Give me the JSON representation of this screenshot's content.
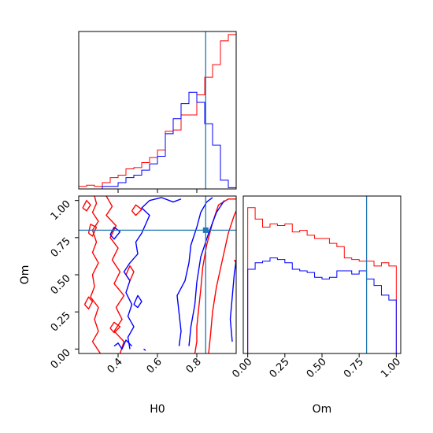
{
  "colors": {
    "red": "#ff0000",
    "blue": "#0000ff",
    "truth": "#1f77b4",
    "frame": "#000000"
  },
  "chart_data": {
    "type": "corner",
    "truth": {
      "H0": 0.845,
      "Om": 0.8
    },
    "panels": {
      "h0_hist": {
        "type": "histogram",
        "xlim": [
          0.2,
          1.0
        ],
        "bin_edges": [
          0.2,
          0.24,
          0.28,
          0.32,
          0.36,
          0.4,
          0.44,
          0.48,
          0.52,
          0.56,
          0.6,
          0.64,
          0.68,
          0.72,
          0.76,
          0.8,
          0.84,
          0.88,
          0.92,
          0.96,
          1.0
        ],
        "series": [
          {
            "color": "red",
            "counts": [
              2,
              3,
              2,
              5,
              9,
              11,
              16,
              17,
              21,
              25,
              31,
              46,
              47,
              59,
              59,
              75,
              89,
              99,
              118,
              123
            ]
          },
          {
            "color": "blue",
            "counts": [
              0,
              0,
              0,
              2,
              2,
              5,
              9,
              11,
              15,
              20,
              26,
              44,
              56,
              68,
              77,
              69,
              52,
              35,
              7,
              1
            ]
          }
        ]
      },
      "om_hist": {
        "type": "histogram",
        "xlim": [
          -0.03,
          1.03
        ],
        "xticks": [
          "0.00",
          "0.25",
          "0.50",
          "0.75",
          "1.00"
        ],
        "xlabel": "Om",
        "bin_edges": [
          0.0,
          0.05,
          0.1,
          0.15,
          0.2,
          0.25,
          0.3,
          0.35,
          0.4,
          0.45,
          0.5,
          0.55,
          0.6,
          0.65,
          0.7,
          0.75,
          0.8,
          0.85,
          0.9,
          0.95,
          1.0
        ],
        "series": [
          {
            "color": "red",
            "counts": [
              90,
              83,
              78,
              80,
              79,
              80,
              75,
              76,
              73,
              71,
              71,
              68,
              66,
              59,
              58,
              57,
              57,
              54,
              56,
              54
            ]
          },
          {
            "color": "blue",
            "counts": [
              52,
              56,
              57,
              59,
              58,
              56,
              52,
              51,
              50,
              47,
              46,
              47,
              51,
              51,
              49,
              51,
              46,
              42,
              36,
              33
            ]
          }
        ]
      },
      "joint": {
        "type": "contour",
        "xlim": [
          0.2,
          1.0
        ],
        "ylim": [
          -0.03,
          1.03
        ],
        "xticks": [
          "0.4",
          "0.6",
          "0.8"
        ],
        "yticks": [
          "0.00",
          "0.25",
          "0.50",
          "0.75",
          "1.00"
        ],
        "xlabel": "H0",
        "ylabel": "Om",
        "red_contours": [
          [
            [
              0.28,
              1.03
            ],
            [
              0.29,
              0.98
            ],
            [
              0.27,
              0.92
            ],
            [
              0.3,
              0.86
            ],
            [
              0.27,
              0.8
            ],
            [
              0.29,
              0.72
            ],
            [
              0.27,
              0.65
            ],
            [
              0.3,
              0.58
            ],
            [
              0.27,
              0.5
            ],
            [
              0.28,
              0.42
            ],
            [
              0.26,
              0.35
            ],
            [
              0.3,
              0.28
            ],
            [
              0.28,
              0.2
            ],
            [
              0.3,
              0.12
            ],
            [
              0.27,
              0.05
            ],
            [
              0.31,
              -0.03
            ]
          ],
          [
            [
              0.34,
              1.03
            ],
            [
              0.37,
              0.96
            ],
            [
              0.34,
              0.9
            ],
            [
              0.39,
              0.83
            ],
            [
              0.36,
              0.75
            ],
            [
              0.4,
              0.68
            ],
            [
              0.37,
              0.6
            ],
            [
              0.41,
              0.52
            ],
            [
              0.38,
              0.44
            ],
            [
              0.43,
              0.36
            ],
            [
              0.39,
              0.28
            ],
            [
              0.42,
              0.2
            ],
            [
              0.38,
              0.12
            ],
            [
              0.43,
              0.05
            ],
            [
              0.41,
              -0.03
            ]
          ],
          [
            [
              0.79,
              -0.03
            ],
            [
              0.8,
              0.05
            ],
            [
              0.8,
              0.15
            ],
            [
              0.81,
              0.28
            ],
            [
              0.82,
              0.4
            ],
            [
              0.83,
              0.55
            ],
            [
              0.85,
              0.7
            ],
            [
              0.88,
              0.85
            ],
            [
              0.91,
              0.97
            ],
            [
              0.96,
              1.01
            ],
            [
              1.0,
              1.01
            ]
          ],
          [
            [
              0.86,
              -0.03
            ],
            [
              0.87,
              0.1
            ],
            [
              0.88,
              0.25
            ],
            [
              0.9,
              0.42
            ],
            [
              0.93,
              0.6
            ],
            [
              0.96,
              0.78
            ],
            [
              0.99,
              0.9
            ],
            [
              1.0,
              0.93
            ]
          ],
          [
            [
              0.22,
              0.95
            ],
            [
              0.24,
              0.93
            ],
            [
              0.26,
              0.97
            ],
            [
              0.24,
              1.0
            ],
            [
              0.22,
              0.95
            ]
          ],
          [
            [
              0.23,
              0.3
            ],
            [
              0.25,
              0.27
            ],
            [
              0.27,
              0.32
            ],
            [
              0.25,
              0.35
            ],
            [
              0.23,
              0.3
            ]
          ],
          [
            [
              0.44,
              0.5
            ],
            [
              0.46,
              0.46
            ],
            [
              0.48,
              0.52
            ],
            [
              0.46,
              0.56
            ],
            [
              0.44,
              0.5
            ]
          ],
          [
            [
              0.25,
              0.78
            ],
            [
              0.27,
              0.76
            ],
            [
              0.29,
              0.82
            ],
            [
              0.26,
              0.84
            ],
            [
              0.25,
              0.78
            ]
          ],
          [
            [
              0.47,
              0.93
            ],
            [
              0.49,
              0.9
            ],
            [
              0.52,
              0.94
            ],
            [
              0.49,
              0.97
            ],
            [
              0.47,
              0.93
            ]
          ],
          [
            [
              0.36,
              0.14
            ],
            [
              0.38,
              0.11
            ],
            [
              0.41,
              0.15
            ],
            [
              0.38,
              0.18
            ],
            [
              0.36,
              0.14
            ]
          ],
          [
            [
              0.99,
              0.6
            ],
            [
              1.0,
              0.58
            ]
          ]
        ],
        "blue_contours": [
          [
            [
              0.46,
              0.0
            ],
            [
              0.45,
              0.08
            ],
            [
              0.48,
              0.15
            ],
            [
              0.45,
              0.22
            ],
            [
              0.47,
              0.3
            ],
            [
              0.44,
              0.38
            ],
            [
              0.46,
              0.46
            ],
            [
              0.43,
              0.52
            ],
            [
              0.46,
              0.58
            ],
            [
              0.5,
              0.64
            ],
            [
              0.49,
              0.72
            ],
            [
              0.52,
              0.78
            ],
            [
              0.54,
              0.84
            ],
            [
              0.56,
              0.9
            ],
            [
              0.52,
              0.95
            ],
            [
              0.56,
              1.0
            ],
            [
              0.62,
              1.02
            ],
            [
              0.68,
              0.99
            ],
            [
              0.72,
              1.01
            ]
          ],
          [
            [
              0.71,
              0.02
            ],
            [
              0.72,
              0.12
            ],
            [
              0.71,
              0.24
            ],
            [
              0.7,
              0.36
            ],
            [
              0.74,
              0.46
            ],
            [
              0.76,
              0.58
            ],
            [
              0.77,
              0.7
            ],
            [
              0.8,
              0.82
            ],
            [
              0.82,
              0.92
            ],
            [
              0.85,
              0.99
            ],
            [
              0.88,
              1.02
            ]
          ],
          [
            [
              0.76,
              0.02
            ],
            [
              0.77,
              0.15
            ],
            [
              0.79,
              0.3
            ],
            [
              0.8,
              0.45
            ],
            [
              0.82,
              0.62
            ],
            [
              0.86,
              0.78
            ],
            [
              0.9,
              0.92
            ],
            [
              0.94,
              1.0
            ]
          ],
          [
            [
              0.98,
              0.05
            ],
            [
              0.97,
              0.2
            ],
            [
              0.98,
              0.35
            ],
            [
              0.99,
              0.5
            ],
            [
              1.0,
              0.6
            ]
          ],
          [
            [
              0.38,
              0.02
            ],
            [
              0.4,
              0.04
            ],
            [
              0.42,
              0.0
            ],
            [
              0.44,
              0.06
            ],
            [
              0.47,
              0.02
            ]
          ],
          [
            [
              0.48,
              0.3
            ],
            [
              0.5,
              0.28
            ],
            [
              0.52,
              0.32
            ],
            [
              0.5,
              0.36
            ],
            [
              0.48,
              0.3
            ]
          ],
          [
            [
              0.36,
              0.77
            ],
            [
              0.38,
              0.74
            ],
            [
              0.41,
              0.79
            ],
            [
              0.38,
              0.82
            ],
            [
              0.36,
              0.77
            ]
          ],
          [
            [
              0.53,
              0.0
            ],
            [
              0.54,
              -0.01
            ]
          ]
        ]
      }
    }
  }
}
